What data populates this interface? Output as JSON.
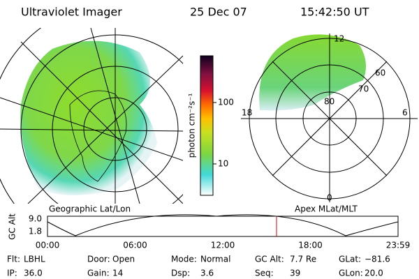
{
  "header": {
    "title": "Ultraviolet Imager",
    "date": "25 Dec 07",
    "time": "15:42:50 UT"
  },
  "left_panel": {
    "caption": "Geographic Lat/Lon"
  },
  "right_panel": {
    "caption": "Apex MLat/MLT",
    "mlt_labels": [
      "12",
      "18",
      "6",
      "0"
    ],
    "lat_labels": [
      "60",
      "70",
      "80"
    ]
  },
  "colorbar": {
    "label": "photon cm⁻²s⁻¹",
    "ticks": [
      "100",
      "10"
    ]
  },
  "altitude_strip": {
    "axis_label": "GC Alt",
    "yticks": [
      "9.0",
      "1.8"
    ],
    "xticks": [
      "00:00",
      "06:00",
      "12:00",
      "18:00",
      "23:59"
    ]
  },
  "info": [
    [
      "Flt:",
      "LBHL"
    ],
    [
      "IP:",
      "36.0"
    ],
    [
      "Door:",
      "Open"
    ],
    [
      "Gain:",
      "14"
    ],
    [
      "Mode:",
      "Normal"
    ],
    [
      "Dsp:",
      "3.6"
    ],
    [
      "GC Alt:",
      "7.7 Re"
    ],
    [
      "Seq:",
      "39"
    ],
    [
      "GLat:",
      "−81.6"
    ],
    [
      "GLon:",
      "20.0"
    ]
  ]
}
